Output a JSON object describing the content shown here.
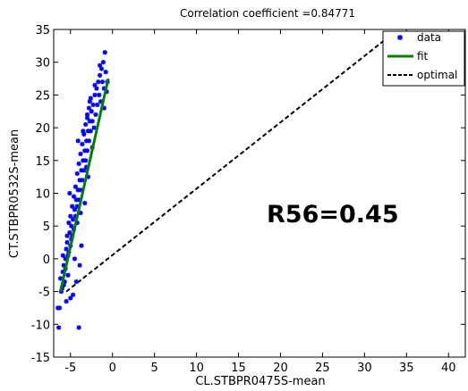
{
  "chart_data": {
    "type": "scatter",
    "title": "Correlation coefficient =0.84771",
    "xlabel": "CL.STBPR0475S-mean",
    "ylabel": "CT.STBPR0532S-mean",
    "xlim": [
      -7,
      42
    ],
    "ylim": [
      -15,
      35
    ],
    "xticks": [
      -5,
      0,
      5,
      10,
      15,
      20,
      25,
      30,
      35,
      40
    ],
    "yticks": [
      -15,
      -10,
      -5,
      0,
      5,
      10,
      15,
      20,
      25,
      30,
      35
    ],
    "annotation": "R56=0.45",
    "legend": {
      "position": "top-right",
      "entries": [
        "data",
        "fit",
        "optimal"
      ]
    },
    "colors": {
      "data": "#0000ff",
      "fit": "#008000",
      "optimal": "#000000"
    },
    "series": [
      {
        "name": "data",
        "x": [
          -6.4,
          -6.3,
          -6.1,
          -6.2,
          -6.0,
          -5.9,
          -5.8,
          -5.9,
          -5.7,
          -5.6,
          -5.5,
          -5.6,
          -5.4,
          -5.3,
          -5.4,
          -5.2,
          -5.1,
          -5.2,
          -5.0,
          -4.9,
          -5.0,
          -4.8,
          -4.7,
          -4.8,
          -4.6,
          -4.5,
          -4.6,
          -4.4,
          -4.3,
          -4.4,
          -4.2,
          -4.1,
          -4.2,
          -4.0,
          -3.9,
          -4.0,
          -3.8,
          -3.7,
          -3.8,
          -3.6,
          -3.5,
          -3.6,
          -3.4,
          -3.3,
          -3.4,
          -3.2,
          -3.1,
          -3.2,
          -3.0,
          -2.9,
          -3.0,
          -2.8,
          -2.7,
          -2.8,
          -2.6,
          -2.5,
          -2.6,
          -2.4,
          -2.3,
          -2.2,
          -2.1,
          -2.0,
          -1.9,
          -1.8,
          -1.7,
          -1.6,
          -1.5,
          -1.4,
          -1.3,
          -1.2,
          -1.1,
          -1.0,
          -0.9,
          -0.8,
          -0.6,
          -0.7,
          -6.5,
          -5.5,
          -4.0,
          -4.7,
          -4.3,
          -3.7,
          -3.9,
          -5.0,
          -4.2,
          -3.3,
          -2.9,
          -2.4,
          -3.1,
          -4.5,
          -5.3,
          -5.8,
          -4.9,
          -3.5,
          -2.7,
          -2.1,
          -1.5,
          -1.0,
          -4.1,
          -3.0,
          -5.1,
          -3.8
        ],
        "y": [
          -10.5,
          -7.5,
          -5.0,
          -3.0,
          -4.5,
          -2.0,
          -1.0,
          0.5,
          -3.5,
          0.0,
          1.5,
          -1.5,
          2.5,
          0.5,
          3.5,
          1.0,
          4.0,
          5.5,
          2.0,
          5.0,
          6.5,
          3.5,
          6.0,
          8.0,
          4.5,
          7.5,
          9.5,
          6.5,
          9.0,
          11.0,
          8.0,
          10.5,
          13.0,
          9.0,
          12.0,
          14.5,
          10.5,
          13.5,
          16.0,
          12.0,
          15.0,
          17.5,
          13.5,
          16.5,
          19.0,
          15.0,
          18.0,
          20.5,
          16.5,
          19.5,
          22.0,
          18.0,
          21.0,
          23.0,
          19.5,
          22.5,
          24.5,
          21.0,
          23.5,
          20.0,
          25.0,
          22.0,
          26.0,
          23.5,
          27.0,
          25.0,
          28.0,
          24.0,
          29.0,
          27.0,
          30.0,
          26.0,
          31.5,
          28.5,
          27.0,
          25.5,
          -7.5,
          -6.5,
          -10.5,
          -5.5,
          -3.5,
          2.0,
          -1.0,
          -6.0,
          5.5,
          8.5,
          12.5,
          17.0,
          14.0,
          0.0,
          -2.5,
          -4.0,
          3.0,
          19.5,
          24.0,
          26.5,
          29.5,
          23.0,
          18.0,
          21.5,
          10.0,
          7.0
        ]
      },
      {
        "name": "fit",
        "x": [
          -6.2,
          -0.5
        ],
        "y": [
          -5.0,
          27.5
        ]
      },
      {
        "name": "optimal",
        "x": [
          -5.5,
          33.5
        ],
        "y": [
          -5.0,
          34.5
        ]
      }
    ]
  }
}
